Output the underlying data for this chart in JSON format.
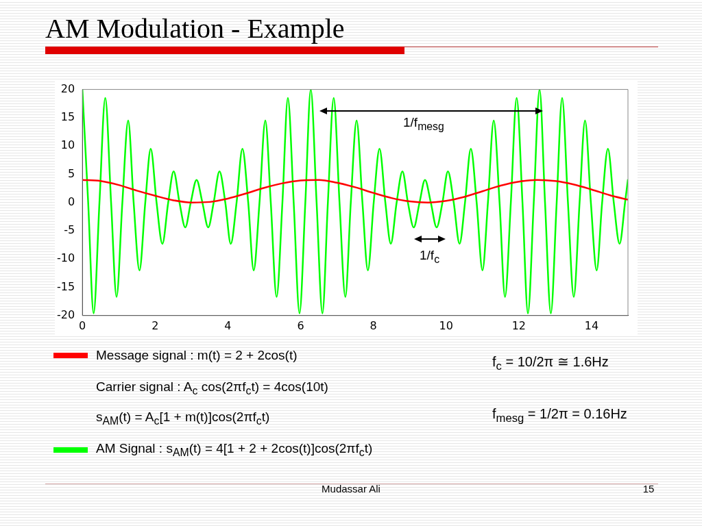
{
  "chart_data": {
    "type": "line",
    "title": "AM Modulation - Example",
    "xlim": [
      0,
      15
    ],
    "xticks": [
      0,
      2,
      4,
      6,
      8,
      10,
      12,
      14
    ],
    "ylim": [
      -20,
      20
    ],
    "yticks": [
      -20,
      -15,
      -10,
      -5,
      0,
      5,
      10,
      15,
      20
    ],
    "grid": false,
    "legend": "bottom",
    "series": [
      {
        "name": "Message signal : m(t) = 2 + 2cos(t)",
        "color": "#ff0000",
        "x": [
          0,
          0.5,
          1,
          1.5,
          2,
          2.5,
          3,
          3.5,
          4,
          4.5,
          5,
          5.5,
          6,
          6.5,
          7,
          7.5,
          8,
          8.5,
          9,
          9.5,
          10,
          10.5,
          11,
          11.5,
          12,
          12.5,
          13,
          13.5,
          14,
          14.5,
          15
        ],
        "values": [
          4,
          3.8,
          3.1,
          2.1,
          1.2,
          0.4,
          0,
          0.1,
          0.7,
          1.6,
          2.6,
          3.4,
          3.9,
          4,
          3.5,
          2.7,
          1.7,
          0.8,
          0.2,
          0,
          0.3,
          1,
          2,
          3,
          3.7,
          4,
          3.8,
          3.2,
          2.3,
          1.3,
          0.5
        ]
      },
      {
        "name": "AM Signal : s$_{AM}$(t) = 4[1 + 2 + 2cos(t)]cos(2πf$_{c}$t)",
        "color": "#00ff00",
        "x": [
          0,
          0.16,
          0.31,
          0.47,
          0.63,
          0.79,
          0.94,
          1.1,
          1.26,
          1.41,
          1.57,
          1.73,
          1.88,
          2.04,
          2.2,
          2.36,
          2.51,
          2.67,
          2.83,
          2.98,
          3.14,
          3.3,
          3.46,
          3.61,
          3.77,
          3.93,
          4.08,
          4.24,
          4.4,
          4.56,
          4.71,
          4.87,
          5.03,
          5.18,
          5.34,
          5.5,
          5.65,
          5.81,
          5.97,
          6.13,
          6.28,
          6.44,
          6.6,
          6.75,
          6.91,
          7.07,
          7.23,
          7.38,
          7.54,
          7.7,
          7.85,
          8.01,
          8.17,
          8.33,
          8.48,
          8.64,
          8.8,
          8.95,
          9.11,
          9.27,
          9.42,
          9.58,
          9.74,
          9.9,
          10.05,
          10.21,
          10.37,
          10.52,
          10.68,
          10.84,
          11,
          11.15,
          11.31,
          11.47,
          11.62,
          11.78,
          11.94,
          12.1,
          12.25,
          12.41,
          12.57,
          12.72,
          12.88,
          13.04,
          13.19,
          13.35,
          13.51,
          13.67,
          13.82,
          13.98,
          14.14,
          14.29,
          14.45,
          14.61,
          14.77,
          14.92,
          15
        ],
        "values": [
          20,
          0,
          -19.6,
          0,
          18.5,
          0,
          -16.7,
          0,
          14.5,
          0,
          -12,
          0,
          9.5,
          0,
          -7.3,
          0,
          5.5,
          0,
          -4.4,
          0,
          4,
          0,
          -4.4,
          0,
          5.5,
          0,
          -7.3,
          0,
          9.5,
          0,
          -12,
          0,
          14.5,
          0,
          -16.7,
          0,
          18.5,
          0,
          -19.6,
          0,
          20,
          0,
          -19.6,
          0,
          18.5,
          0,
          -16.7,
          0,
          14.5,
          0,
          -12,
          0,
          9.5,
          0,
          -7.3,
          0,
          5.5,
          0,
          -4.4,
          0,
          4,
          0,
          -4.4,
          0,
          5.5,
          0,
          -7.3,
          0,
          9.5,
          0,
          -12,
          0,
          14.5,
          0,
          -16.7,
          0,
          18.5,
          0,
          -19.6,
          0,
          20,
          0,
          -19.6,
          0,
          18.5,
          0,
          -16.7,
          0,
          14.5,
          0,
          -12,
          0,
          9.5,
          0,
          -7.3,
          0,
          4.1
        ]
      }
    ],
    "annotations": [
      "1/f$_{mesg}$",
      "1/f$_{c}$",
      "Carrier signal : A$_{c}$ cos(2πf$_{c}$t) = 4cos(10t)",
      "s$_{AM}$(t) = A$_{c}$[1 + m(t)]cos(2πf$_{c}$t)",
      "f$_{c}$ = 10/2π ≅ 1.6Hz",
      "f$_{mesg}$ = 1/2π = 0.16Hz",
      "Mudassar Ali",
      "15"
    ]
  }
}
